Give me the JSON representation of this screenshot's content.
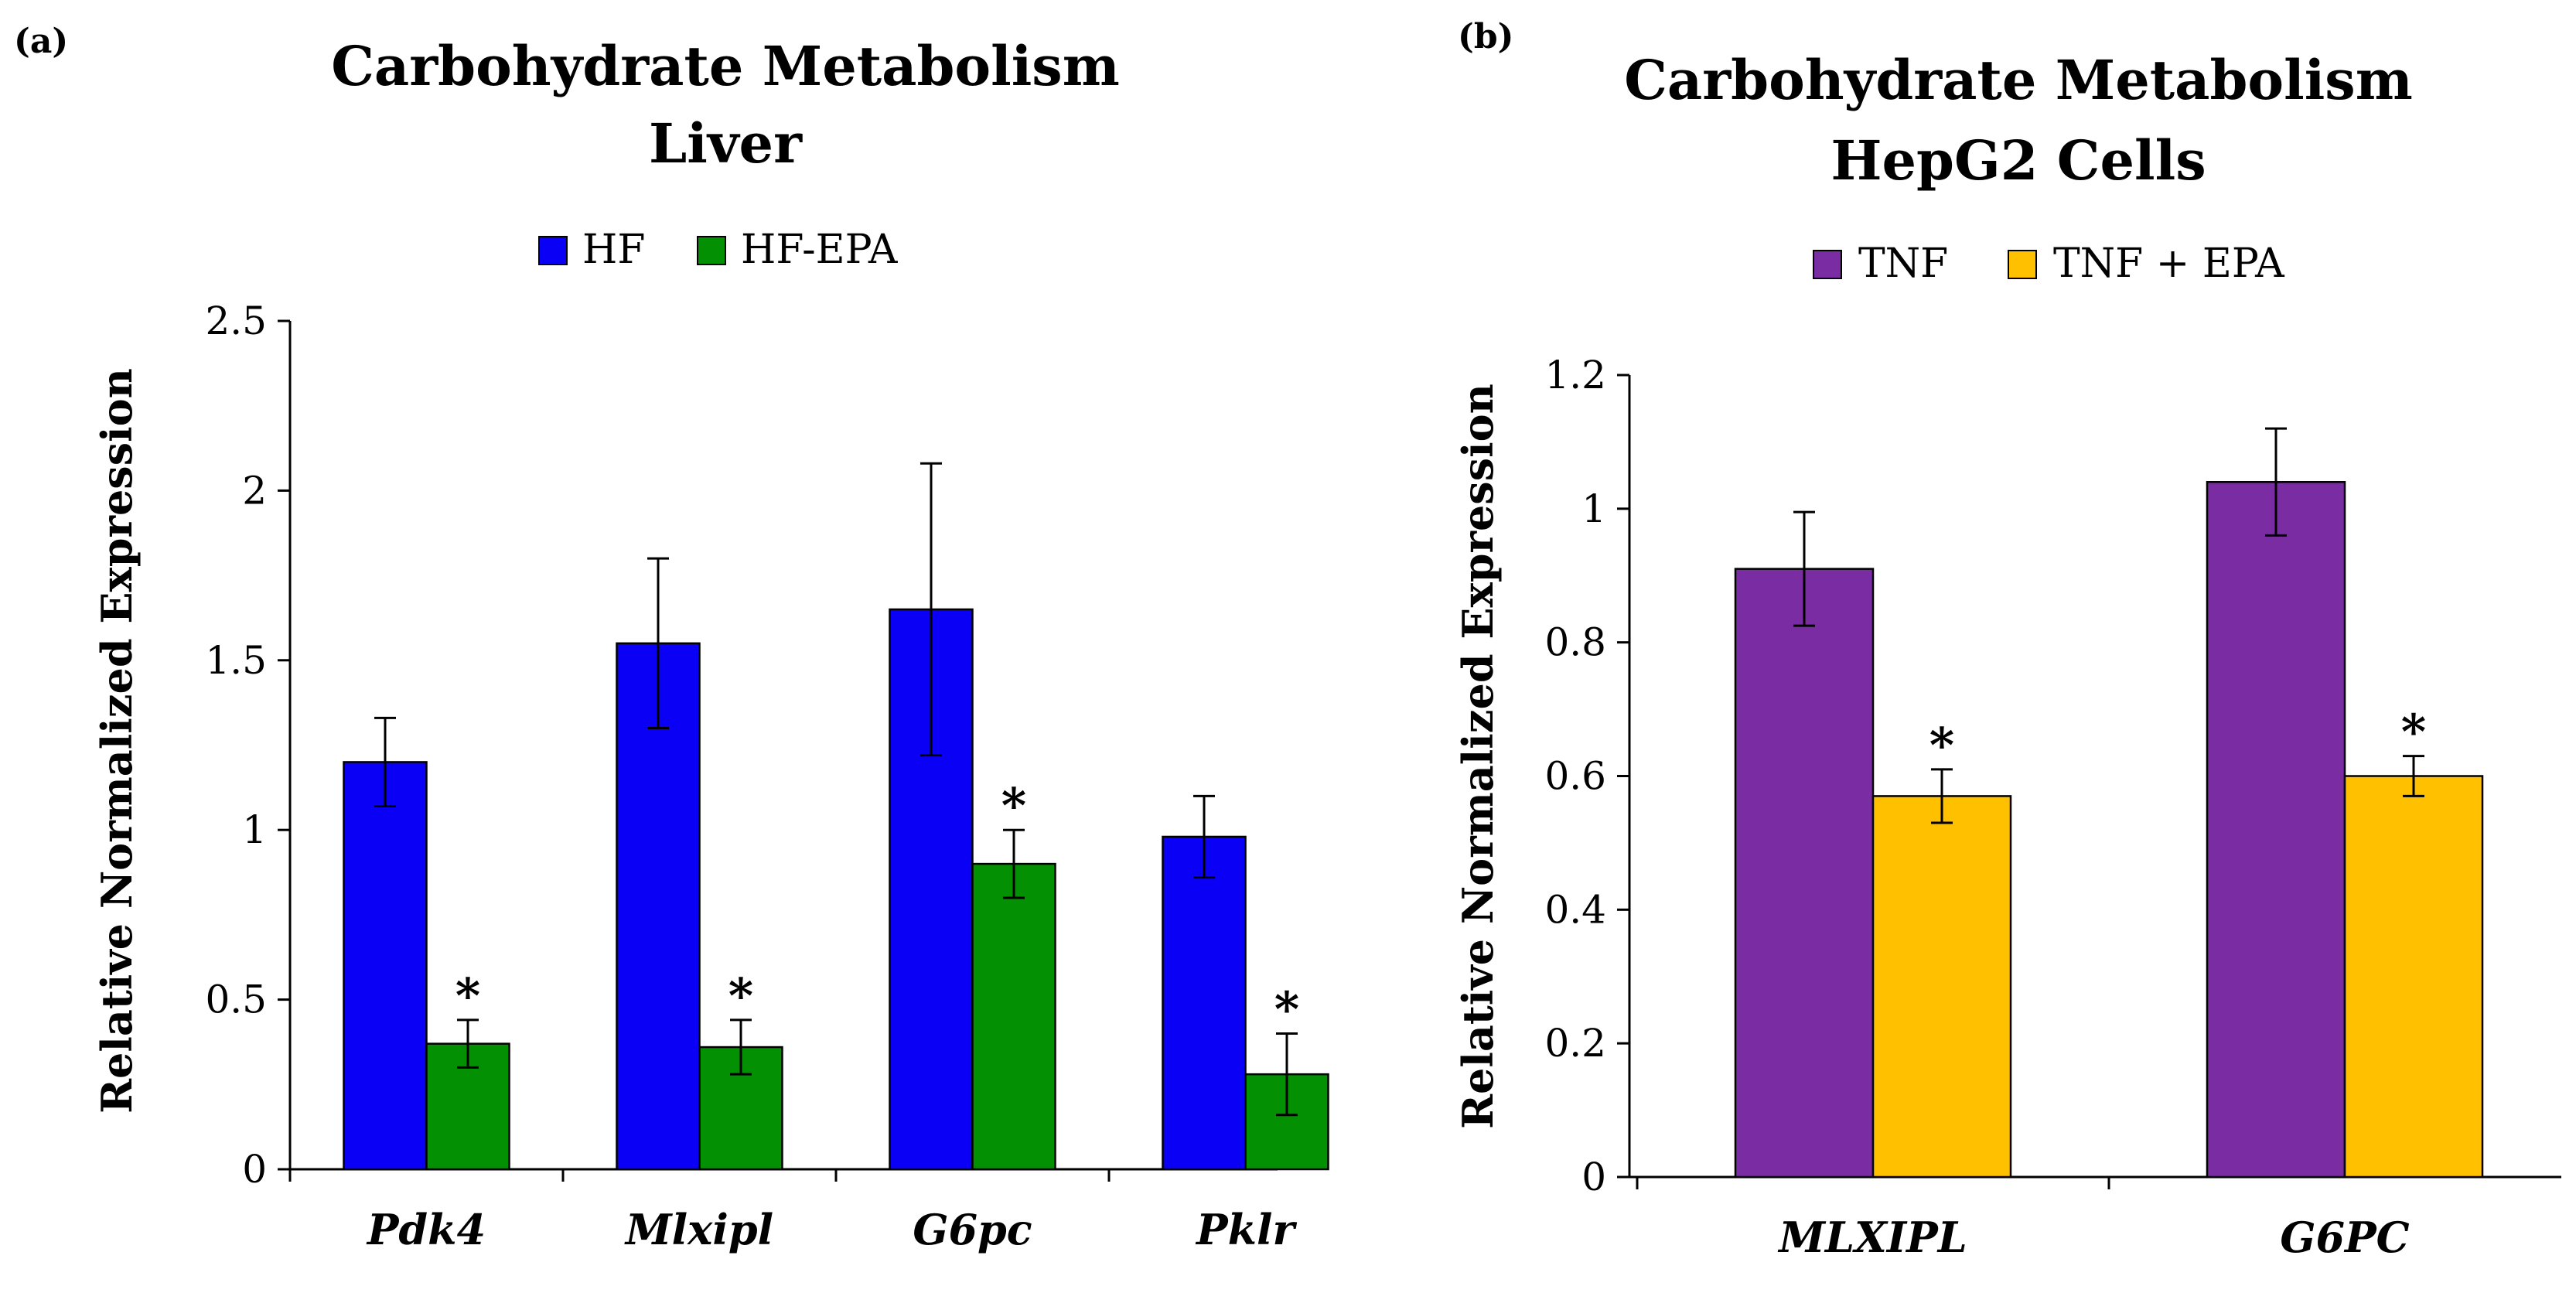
{
  "chart_data": [
    {
      "type": "bar",
      "panel_label": "(a)",
      "title_lines": [
        "Carbohydrate Metabolism",
        "Liver"
      ],
      "xlabel": "",
      "ylabel": "Relative Normalized Expression",
      "ylim": [
        0,
        2.5
      ],
      "yticks": [
        0,
        0.5,
        1,
        1.5,
        2,
        2.5
      ],
      "ytick_labels": [
        "0",
        "0.5",
        "1",
        "1.5",
        "2",
        "2.5"
      ],
      "grid": false,
      "legend_position": "top-center",
      "categories": [
        "Pdk4",
        "Mlxipl",
        "G6pc",
        "Pklr"
      ],
      "series": [
        {
          "name": "HF",
          "color": "#0A00F5",
          "values": [
            1.2,
            1.55,
            1.65,
            0.98
          ],
          "errors": [
            0.13,
            0.25,
            0.43,
            0.12
          ],
          "significance": [
            "",
            "",
            "",
            ""
          ]
        },
        {
          "name": "HF-EPA",
          "color": "#039103",
          "values": [
            0.37,
            0.36,
            0.9,
            0.28
          ],
          "errors": [
            0.07,
            0.08,
            0.1,
            0.12
          ],
          "significance": [
            "*",
            "*",
            "*",
            "*"
          ]
        }
      ]
    },
    {
      "type": "bar",
      "panel_label": "(b)",
      "title_lines": [
        "Carbohydrate Metabolism",
        "HepG2 Cells"
      ],
      "xlabel": "",
      "ylabel": "Relative Normalized Expression",
      "ylim": [
        0,
        1.2
      ],
      "yticks": [
        0,
        0.2,
        0.4,
        0.6,
        0.8,
        1,
        1.2
      ],
      "ytick_labels": [
        "0",
        "0.2",
        "0.4",
        "0.6",
        "0.8",
        "1",
        "1.2"
      ],
      "grid": false,
      "legend_position": "top-center",
      "categories": [
        "MLXIPL",
        "G6PC"
      ],
      "series": [
        {
          "name": "TNF",
          "color": "#7A2DA3",
          "values": [
            0.91,
            1.04
          ],
          "errors": [
            0.085,
            0.08
          ],
          "significance": [
            "",
            ""
          ]
        },
        {
          "name": "TNF + EPA",
          "color": "#FFC000",
          "values": [
            0.57,
            0.6
          ],
          "errors": [
            0.04,
            0.03
          ],
          "significance": [
            "*",
            "*"
          ]
        }
      ]
    }
  ]
}
